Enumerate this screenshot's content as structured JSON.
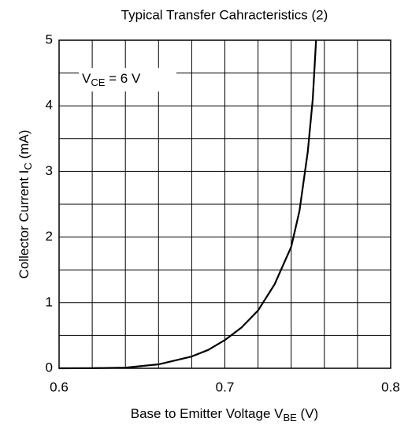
{
  "chart_data": {
    "type": "line",
    "title": "Typical Transfer Cahracteristics (2)",
    "x_label": {
      "main": "Base to Emitter Voltage  V",
      "sub": "BE",
      "rest": "  (V)"
    },
    "y_label": {
      "main": "Collector Current  I",
      "sub": "C",
      "rest": "  (mA)"
    },
    "annotation": {
      "main": "V",
      "sub": "CE",
      "rest": " = 6 V"
    },
    "x": [
      0.6,
      0.62,
      0.64,
      0.66,
      0.68,
      0.69,
      0.7,
      0.71,
      0.72,
      0.73,
      0.74,
      0.745,
      0.75,
      0.753,
      0.755
    ],
    "values": [
      0,
      0.002,
      0.01,
      0.06,
      0.18,
      0.28,
      0.43,
      0.62,
      0.88,
      1.28,
      1.85,
      2.4,
      3.3,
      4.1,
      5
    ],
    "color": "#000000",
    "xlim": [
      0.6,
      0.8
    ],
    "ylim": [
      0,
      5
    ],
    "xticks": [
      0.6,
      0.7,
      0.8
    ],
    "yticks": [
      0,
      1,
      2,
      3,
      4,
      5
    ],
    "xgrid": [
      0.62,
      0.64,
      0.66,
      0.68,
      0.7,
      0.72,
      0.74,
      0.76,
      0.78
    ],
    "ygrid": [
      0.5,
      1,
      1.5,
      2,
      2.5,
      3,
      3.5,
      4,
      4.5
    ],
    "grid": true
  }
}
